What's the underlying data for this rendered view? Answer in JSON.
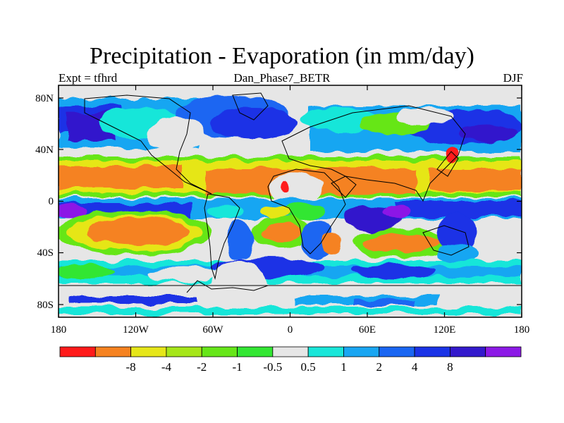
{
  "title": "Precipitation - Evaporation (in mm/day)",
  "left_subtitle": "Expt = tfhrd",
  "center_subtitle": "Dan_Phase7_BETR",
  "right_subtitle": "DJF",
  "x_ticks": [
    "180",
    "120W",
    "60W",
    "0",
    "60E",
    "120E",
    "180"
  ],
  "y_ticks": [
    "80N",
    "40N",
    "0",
    "40S",
    "80S"
  ],
  "colorbar": {
    "colors": [
      "#ff1a1a",
      "#f58220",
      "#e6e619",
      "#a6e619",
      "#66e619",
      "#33e633",
      "#e6e6e6",
      "#19e6d9",
      "#19a6f2",
      "#1a66f2",
      "#1a33e6",
      "#3319cc",
      "#8c19e6"
    ],
    "labels": [
      "-8",
      "-4",
      "-2",
      "-1",
      "-0.5",
      "0.5",
      "1",
      "2",
      "4",
      "8"
    ]
  },
  "chart_data": {
    "type": "heatmap",
    "title": "Precipitation - Evaporation (in mm/day)",
    "subtitles": [
      "Expt = tfhrd",
      "Dan_Phase7_BETR",
      "DJF"
    ],
    "x_range": [
      -180,
      180
    ],
    "y_range": [
      -90,
      90
    ],
    "levels": [
      -8,
      -4,
      -2,
      -1,
      -0.5,
      0.5,
      1,
      2,
      4,
      8
    ]
  }
}
